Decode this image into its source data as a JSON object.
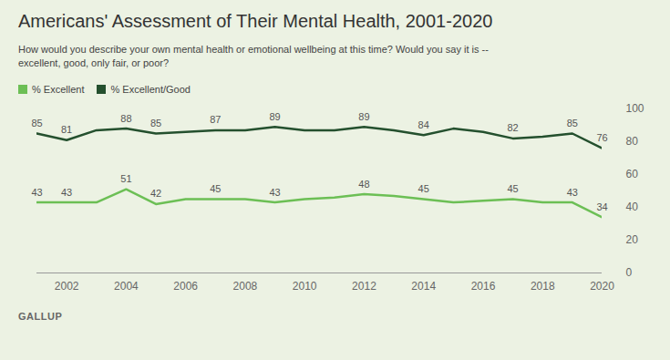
{
  "chart_data": {
    "type": "line",
    "title": "Americans' Assessment of Their Mental Health, 2001-2020",
    "subtitle": "How would you describe your own mental health or emotional wellbeing at this time? Would you say it is --\nexcellent, good, only fair, or poor?",
    "source": "GALLUP",
    "x": [
      2001,
      2002,
      2003,
      2004,
      2005,
      2006,
      2007,
      2008,
      2009,
      2010,
      2011,
      2012,
      2013,
      2014,
      2015,
      2016,
      2017,
      2018,
      2019,
      2020
    ],
    "series": [
      {
        "name": "% Excellent",
        "color": "#6cbf55",
        "values": [
          43,
          43,
          43,
          51,
          42,
          45,
          45,
          45,
          43,
          45,
          46,
          48,
          47,
          45,
          43,
          44,
          45,
          43,
          43,
          34
        ],
        "value_labels": [
          "43",
          "43",
          null,
          "51",
          "42",
          null,
          "45",
          null,
          "43",
          null,
          null,
          "48",
          null,
          "45",
          null,
          null,
          "45",
          null,
          "43",
          "34"
        ]
      },
      {
        "name": "% Excellent/Good",
        "color": "#24502e",
        "values": [
          85,
          81,
          87,
          88,
          85,
          86,
          87,
          87,
          89,
          87,
          87,
          89,
          87,
          84,
          88,
          86,
          82,
          83,
          85,
          76
        ],
        "value_labels": [
          "85",
          "81",
          null,
          "88",
          "85",
          null,
          "87",
          null,
          "89",
          null,
          null,
          "89",
          null,
          "84",
          null,
          null,
          "82",
          null,
          "85",
          "76"
        ]
      }
    ],
    "xlim": [
      2001,
      2020
    ],
    "xticks": [
      2002,
      2004,
      2006,
      2008,
      2010,
      2012,
      2014,
      2016,
      2018,
      2020
    ],
    "ylim": [
      0,
      100
    ],
    "yticks": [
      0,
      20,
      40,
      60,
      80,
      100
    ],
    "grid": false,
    "data_labels": true,
    "legend": "top-left"
  }
}
